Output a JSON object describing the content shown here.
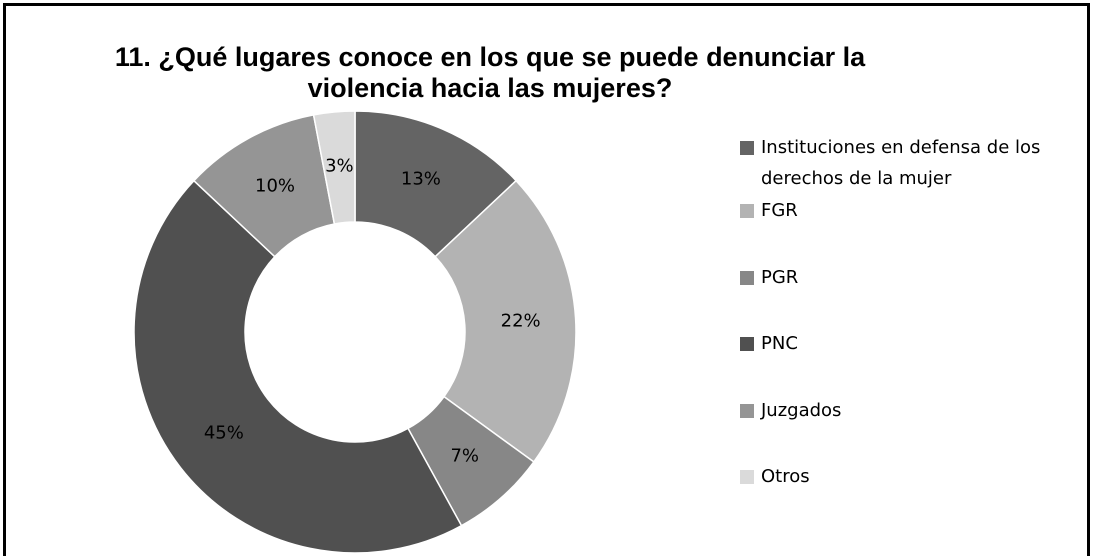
{
  "chart_data": {
    "type": "donut",
    "title": "11.  ¿Qué lugares conoce en los que se puede denunciar la violencia hacia las mujeres?",
    "categories": [
      "Instituciones en defensa de los derechos de la mujer",
      "FGR",
      "PGR",
      "PNC",
      "Juzgados",
      "Otros"
    ],
    "values": [
      13,
      22,
      7,
      45,
      10,
      3
    ],
    "value_labels": [
      "13%",
      "22%",
      "7%",
      "45%",
      "10%",
      "3%"
    ],
    "colors": [
      "#646464",
      "#b3b3b3",
      "#878787",
      "#505050",
      "#959595",
      "#dadada"
    ],
    "legend": "right"
  }
}
